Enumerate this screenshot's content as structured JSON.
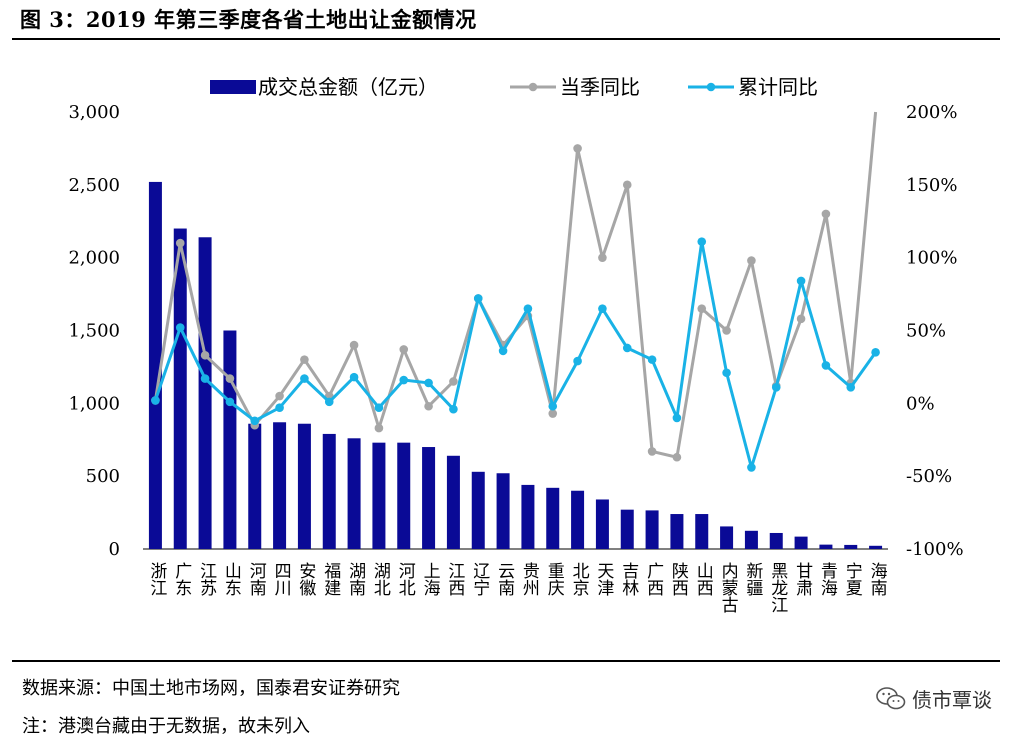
{
  "header": {
    "title": "图 3：2019 年第三季度各省土地出让金额情况"
  },
  "footer": {
    "source": "数据来源：中国土地市场网，国泰君安证券研究",
    "note": "注：港澳台藏由于无数据，故未列入",
    "watermark": "债市覃谈",
    "watermark_icon": "wechat-icon"
  },
  "colors": {
    "bar": "#0a0a96",
    "quarter_yoy": "#a6a6a6",
    "cumulative_yoy": "#19b2e6"
  },
  "chart_data": {
    "type": "bar+line",
    "title": "",
    "xlabel": "",
    "ylabel": "",
    "categories": [
      "浙江",
      "广东",
      "江苏",
      "山东",
      "河南",
      "四川",
      "安徽",
      "福建",
      "湖南",
      "湖北",
      "河北",
      "上海",
      "江西",
      "辽宁",
      "云南",
      "贵州",
      "重庆",
      "北京",
      "天津",
      "吉林",
      "广西",
      "陕西",
      "山西",
      "内蒙古",
      "新疆",
      "黑龙江",
      "甘肃",
      "青海",
      "宁夏",
      "海南"
    ],
    "ylim_left": [
      0,
      3000
    ],
    "yticks_left": [
      "0",
      "500",
      "1,000",
      "1,500",
      "2,000",
      "2,500",
      "3,000"
    ],
    "ylim_right": [
      -100,
      200
    ],
    "yticks_right": [
      "-100%",
      "-50%",
      "0%",
      "50%",
      "100%",
      "150%",
      "200%"
    ],
    "legend_position": "top",
    "series": [
      {
        "name": "成交总金额（亿元）",
        "kind": "bar",
        "axis": "left",
        "values": [
          2520,
          2200,
          2140,
          1500,
          860,
          870,
          860,
          790,
          760,
          730,
          730,
          700,
          640,
          530,
          520,
          440,
          420,
          400,
          340,
          270,
          265,
          240,
          240,
          155,
          125,
          110,
          85,
          30,
          28,
          22
        ]
      },
      {
        "name": "当季同比",
        "kind": "line",
        "axis": "right",
        "values": [
          2,
          110,
          33,
          17,
          -15,
          5,
          30,
          5,
          40,
          -17,
          37,
          -2,
          15,
          72,
          40,
          60,
          -7,
          175,
          100,
          150,
          -33,
          -37,
          65,
          50,
          98,
          12,
          58,
          130,
          14,
          200
        ]
      },
      {
        "name": "累计同比",
        "kind": "line",
        "axis": "right",
        "values": [
          2,
          52,
          17,
          1,
          -12,
          -3,
          17,
          1,
          18,
          -3,
          16,
          14,
          -4,
          72,
          36,
          65,
          -2,
          29,
          65,
          38,
          30,
          -10,
          111,
          21,
          -44,
          11,
          84,
          26,
          11,
          35
        ]
      }
    ]
  }
}
